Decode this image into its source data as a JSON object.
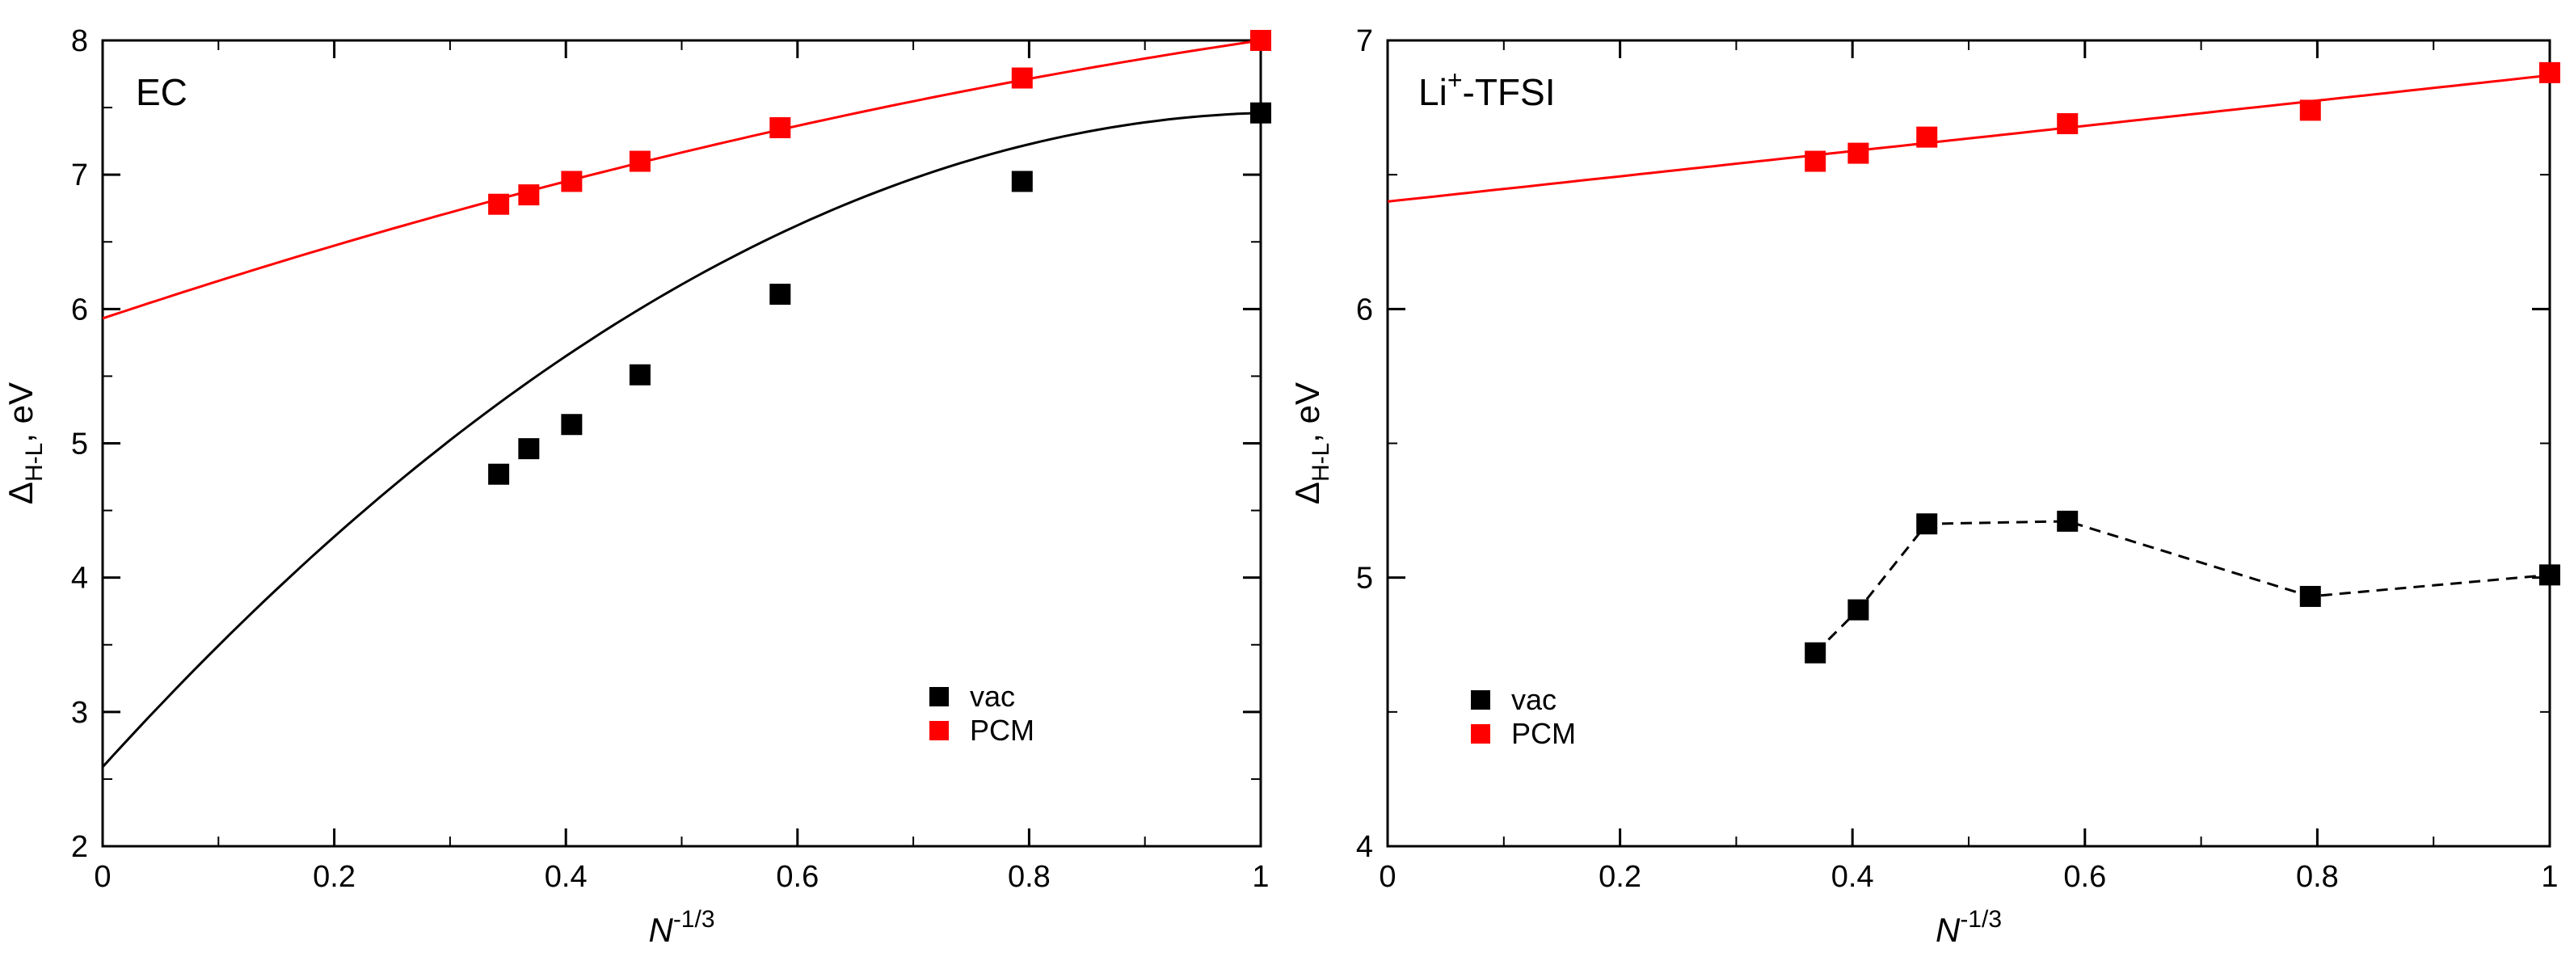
{
  "chart_data": [
    {
      "type": "line",
      "title": "EC",
      "xlabel": "N",
      "xlabel_sup": "-1/3",
      "ylabel": "Δ",
      "ylabel_sub": "H-L",
      "ylabel_unit": ", eV",
      "xlim": [
        0,
        1
      ],
      "ylim": [
        2,
        8
      ],
      "xticks": [
        0,
        0.2,
        0.4,
        0.6,
        0.8,
        1
      ],
      "xtick_labels": [
        "0",
        "0.2",
        "0.4",
        "0.6",
        "0.8",
        "1"
      ],
      "yticks": [
        2,
        3,
        4,
        5,
        6,
        7,
        8
      ],
      "ytick_labels": [
        "2",
        "3",
        "4",
        "5",
        "6",
        "7",
        "8"
      ],
      "legend_position": "bottom-right",
      "series": [
        {
          "name": "vac",
          "color": "#000000",
          "marker": "square",
          "line_style": "solid",
          "points": [
            {
              "x": 0.342,
              "y": 4.77
            },
            {
              "x": 0.368,
              "y": 4.96
            },
            {
              "x": 0.405,
              "y": 5.14
            },
            {
              "x": 0.464,
              "y": 5.51
            },
            {
              "x": 0.585,
              "y": 6.11
            },
            {
              "x": 0.794,
              "y": 6.95
            },
            {
              "x": 1.0,
              "y": 7.46
            }
          ],
          "fit": {
            "a": 2.59,
            "b": 9.5,
            "c": -4.63,
            "x_range": [
              0,
              1
            ]
          }
        },
        {
          "name": "PCM",
          "color": "#ff0000",
          "marker": "square",
          "line_style": "solid",
          "points": [
            {
              "x": 0.342,
              "y": 6.78
            },
            {
              "x": 0.368,
              "y": 6.85
            },
            {
              "x": 0.405,
              "y": 6.95
            },
            {
              "x": 0.464,
              "y": 7.1
            },
            {
              "x": 0.585,
              "y": 7.35
            },
            {
              "x": 0.794,
              "y": 7.72
            },
            {
              "x": 1.0,
              "y": 8.0
            }
          ],
          "fit": {
            "a": 5.93,
            "b": 2.87,
            "c": -0.8,
            "x_range": [
              0,
              1
            ]
          }
        }
      ]
    },
    {
      "type": "line",
      "title": "Li",
      "title_sup": "+",
      "title_suffix": "-TFSI",
      "xlabel": "N",
      "xlabel_sup": "-1/3",
      "ylabel": "Δ",
      "ylabel_sub": "H-L",
      "ylabel_unit": ", eV",
      "xlim": [
        0,
        1
      ],
      "ylim": [
        4,
        7
      ],
      "xticks": [
        0,
        0.2,
        0.4,
        0.6,
        0.8,
        1
      ],
      "xtick_labels": [
        "0",
        "0.2",
        "0.4",
        "0.6",
        "0.8",
        "1"
      ],
      "yticks": [
        4,
        5,
        6,
        7
      ],
      "ytick_labels": [
        "4",
        "5",
        "6",
        "7"
      ],
      "legend_position": "bottom-left",
      "series": [
        {
          "name": "vac",
          "color": "#000000",
          "marker": "square",
          "line_style": "dashed",
          "points": [
            {
              "x": 0.368,
              "y": 4.72
            },
            {
              "x": 0.405,
              "y": 4.88
            },
            {
              "x": 0.464,
              "y": 5.2
            },
            {
              "x": 0.585,
              "y": 5.21
            },
            {
              "x": 0.794,
              "y": 4.93
            },
            {
              "x": 1.0,
              "y": 5.01
            }
          ]
        },
        {
          "name": "PCM",
          "color": "#ff0000",
          "marker": "square",
          "line_style": "solid",
          "points": [
            {
              "x": 0.368,
              "y": 6.55
            },
            {
              "x": 0.405,
              "y": 6.58
            },
            {
              "x": 0.464,
              "y": 6.64
            },
            {
              "x": 0.585,
              "y": 6.69
            },
            {
              "x": 0.794,
              "y": 6.74
            },
            {
              "x": 1.0,
              "y": 6.88
            }
          ],
          "fit": {
            "a": 6.4,
            "b": 0.47,
            "c": 0,
            "x_range": [
              0,
              1
            ]
          }
        }
      ]
    }
  ]
}
